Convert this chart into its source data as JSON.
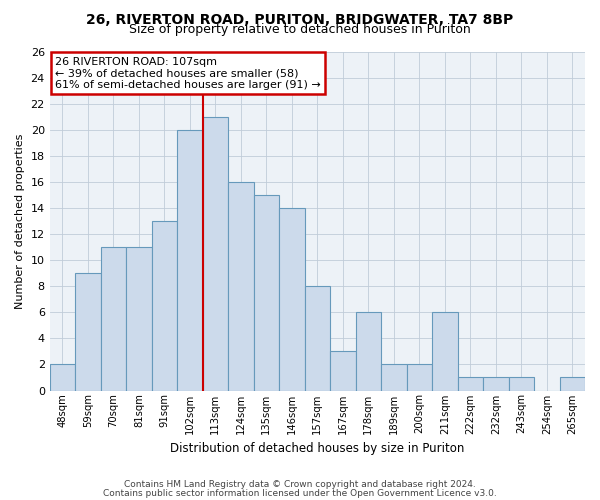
{
  "title1": "26, RIVERTON ROAD, PURITON, BRIDGWATER, TA7 8BP",
  "title2": "Size of property relative to detached houses in Puriton",
  "xlabel": "Distribution of detached houses by size in Puriton",
  "ylabel": "Number of detached properties",
  "categories": [
    "48sqm",
    "59sqm",
    "70sqm",
    "81sqm",
    "91sqm",
    "102sqm",
    "113sqm",
    "124sqm",
    "135sqm",
    "146sqm",
    "157sqm",
    "167sqm",
    "178sqm",
    "189sqm",
    "200sqm",
    "211sqm",
    "222sqm",
    "232sqm",
    "243sqm",
    "254sqm",
    "265sqm"
  ],
  "values": [
    2,
    9,
    11,
    11,
    13,
    20,
    21,
    16,
    15,
    14,
    8,
    3,
    6,
    2,
    2,
    6,
    1,
    1,
    1,
    0,
    1
  ],
  "bar_color": "#ccdaeb",
  "bar_edge_color": "#6699bb",
  "subject_bin_index": 6,
  "subject_line_color": "#cc0000",
  "annotation_line1": "26 RIVERTON ROAD: 107sqm",
  "annotation_line2": "← 39% of detached houses are smaller (58)",
  "annotation_line3": "61% of semi-detached houses are larger (91) →",
  "annotation_box_color": "#cc0000",
  "ylim": [
    0,
    26
  ],
  "yticks": [
    0,
    2,
    4,
    6,
    8,
    10,
    12,
    14,
    16,
    18,
    20,
    22,
    24,
    26
  ],
  "footer1": "Contains HM Land Registry data © Crown copyright and database right 2024.",
  "footer2": "Contains public sector information licensed under the Open Government Licence v3.0.",
  "bg_color": "#edf2f7",
  "grid_color": "#c0ccd8",
  "title1_fontsize": 10,
  "title2_fontsize": 9
}
